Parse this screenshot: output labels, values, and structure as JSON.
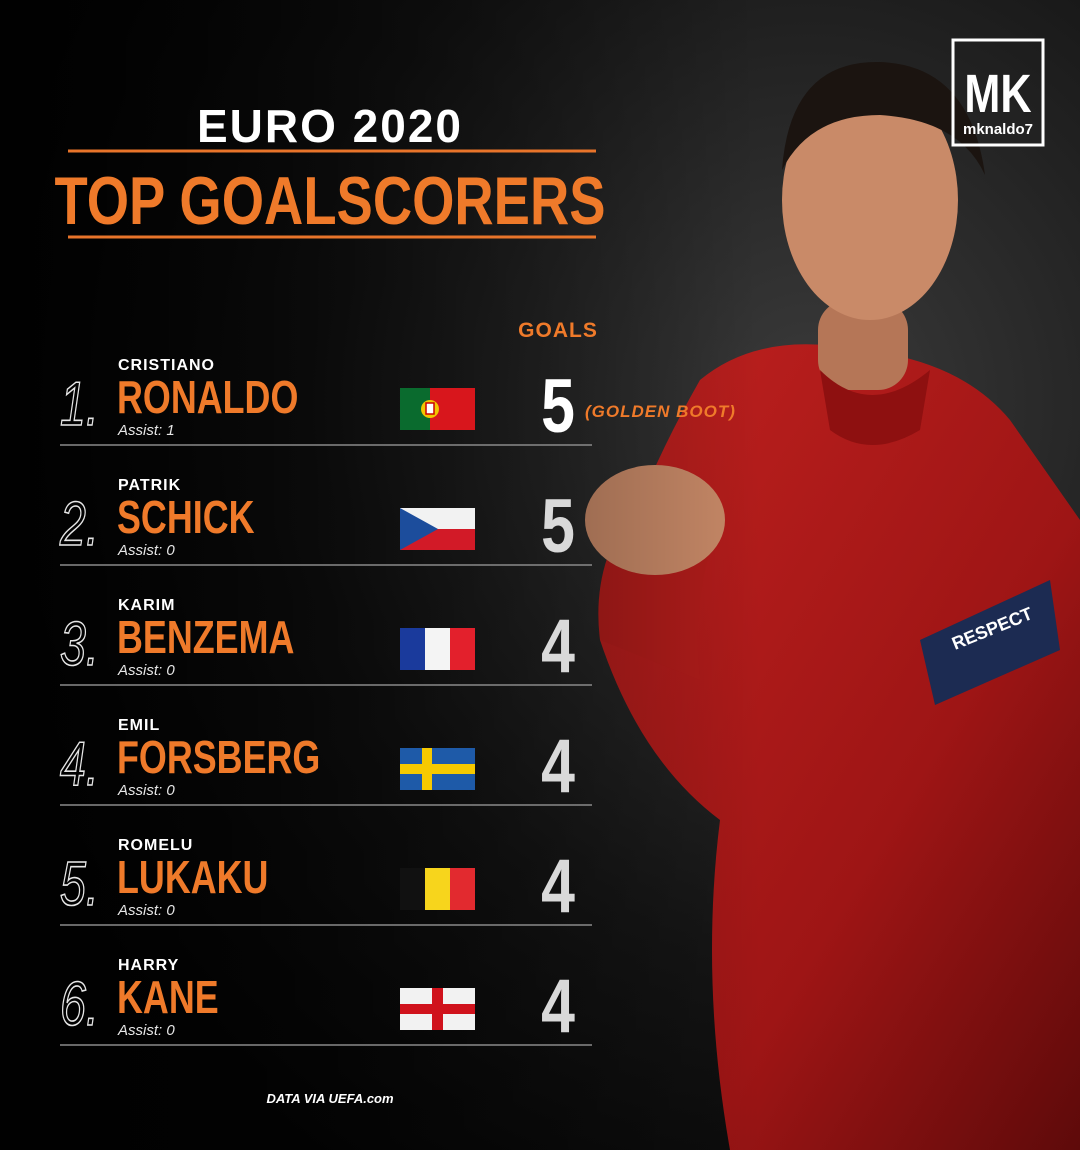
{
  "logo": {
    "mark": "MK",
    "handle": "mknaldo7"
  },
  "header": {
    "line1": "EURO 2020",
    "line2": "TOP GOALSCORERS"
  },
  "goals_header": "GOALS",
  "rows": [
    {
      "rank": "1.",
      "first_name": "CRISTIANO",
      "last_name": "RONALDO",
      "assists": "Assist: 1",
      "goals": 5,
      "note": "(GOLDEN BOOT)"
    },
    {
      "rank": "2.",
      "first_name": "PATRIK",
      "last_name": "SCHICK",
      "assists": "Assist: 0",
      "goals": 5
    },
    {
      "rank": "3.",
      "first_name": "KARIM",
      "last_name": "BENZEMA",
      "assists": "Assist: 0",
      "goals": 4
    },
    {
      "rank": "4.",
      "first_name": "EMIL",
      "last_name": "FORSBERG",
      "assists": "Assist: 0",
      "goals": 4
    },
    {
      "rank": "5.",
      "first_name": "ROMELU",
      "last_name": "LUKAKU",
      "assists": "Assist: 0",
      "goals": 4
    },
    {
      "rank": "6.",
      "first_name": "HARRY",
      "last_name": "KANE",
      "assists": "Assist: 0",
      "goals": 4
    }
  ],
  "footer": "DATA VIA UEFA.com"
}
